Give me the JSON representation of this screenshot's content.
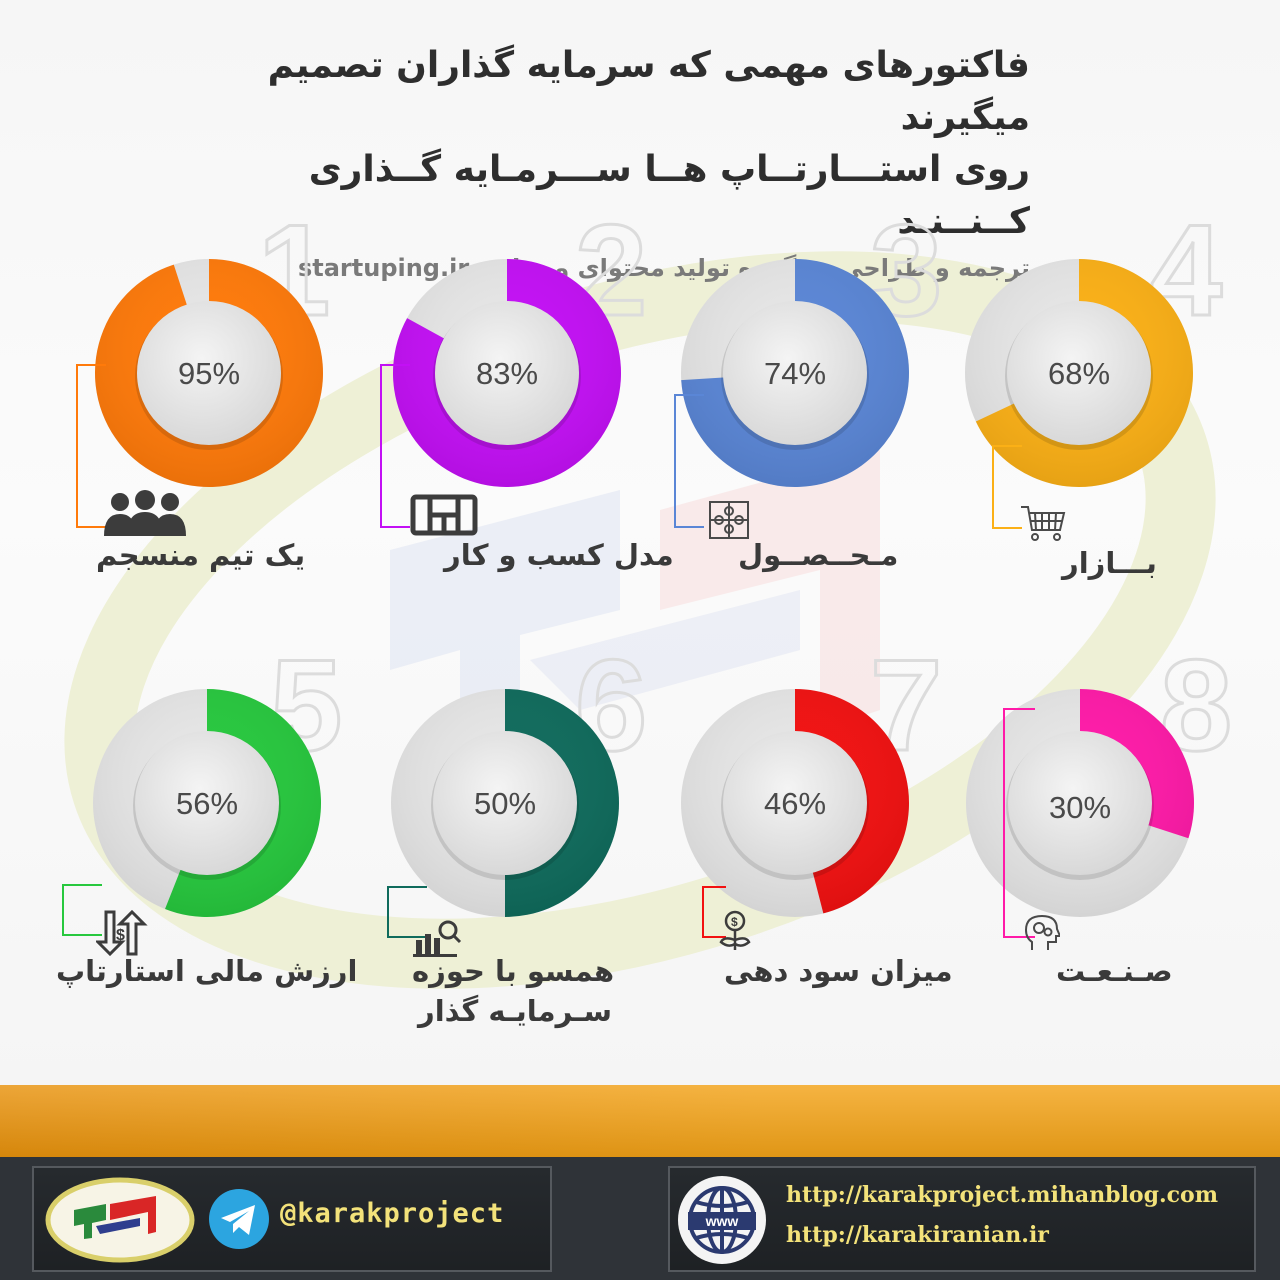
{
  "header": {
    "title_line1": "فاکتورهای مهمی که سرمایه گذاران تصمیم میگیرند",
    "title_line2": "روی استـــارتــاپ هــا ســـرمـایه گــذاری کــنــنـد",
    "subtitle": "ترجمه و طراحی در گروه تولید محتوای وبسایت startuping.ir"
  },
  "chart_data": {
    "type": "pie",
    "factors": [
      {
        "rank": "1",
        "label": "یک تیم منسجم",
        "value": 95,
        "display": "95%",
        "color": "#ff7a0a",
        "icon": "team-icon"
      },
      {
        "rank": "2",
        "label": "مدل کسب و کار",
        "value": 83,
        "display": "83%",
        "color": "#c310f5",
        "icon": "business-model-icon"
      },
      {
        "rank": "3",
        "label": "مـحــصــول",
        "value": 74,
        "display": "74%",
        "color": "#5a86d6",
        "icon": "puzzle-icon"
      },
      {
        "rank": "4",
        "label": "بـــازار",
        "value": 68,
        "display": "68%",
        "color": "#fbb016",
        "icon": "cart-icon"
      },
      {
        "rank": "5",
        "label": "ارزش مالی استارتاپ",
        "value": 56,
        "display": "56%",
        "color": "#27c83e",
        "icon": "dollar-arrow-icon"
      },
      {
        "rank": "6",
        "label": "همسو با حوزه سـرمایـه گذار",
        "label_line1": "همسو با حوزه",
        "label_line2": "سـرمایـه گذار",
        "value": 50,
        "display": "50%",
        "color": "#0f6b5c",
        "icon": "chart-search-icon"
      },
      {
        "rank": "7",
        "label": "میزان سود دهی",
        "value": 46,
        "display": "46%",
        "color": "#f21111",
        "icon": "money-plant-icon"
      },
      {
        "rank": "8",
        "label": "صـنـعـت",
        "value": 30,
        "display": "30%",
        "color": "#ff1aa8",
        "icon": "head-gears-icon"
      }
    ]
  },
  "footer": {
    "handle": "@karakproject",
    "url1": "http://karakproject.mihanblog.com",
    "url2": "http://karakiranian.ir",
    "logo_icon": "karak-logo-icon",
    "telegram_icon": "telegram-icon",
    "globe_icon": "www-globe-icon",
    "band_color": "#f3a318",
    "footer_color": "#2f3338"
  }
}
